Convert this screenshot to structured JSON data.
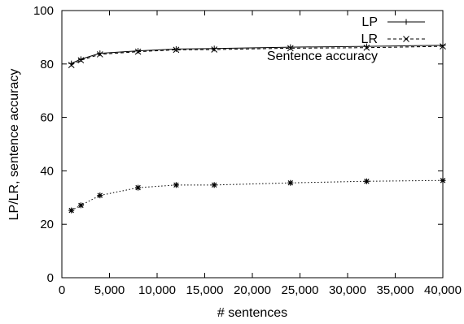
{
  "chart_data": {
    "type": "line",
    "title": "",
    "xlabel": "# sentences",
    "ylabel": "LP/LR, sentence accuracy",
    "xlim": [
      0,
      40000
    ],
    "ylim": [
      0,
      100
    ],
    "x_ticks": [
      0,
      5000,
      10000,
      15000,
      20000,
      25000,
      30000,
      35000,
      40000
    ],
    "x_tick_labels": [
      "0",
      "5,000",
      "10,000",
      "15,000",
      "20,000",
      "25,000",
      "30,000",
      "35,000",
      "40,000"
    ],
    "y_ticks": [
      0,
      20,
      40,
      60,
      80,
      100
    ],
    "y_tick_labels": [
      "0",
      "20",
      "40",
      "60",
      "80",
      "100"
    ],
    "grid": false,
    "legend_position": "top-right",
    "x": [
      1000,
      2000,
      4000,
      8000,
      12000,
      16000,
      24000,
      32000,
      40000
    ],
    "series": [
      {
        "name": "LP",
        "values": [
          80.2,
          81.8,
          84.0,
          84.9,
          85.6,
          85.8,
          86.3,
          86.6,
          87.0
        ],
        "marker": "plus",
        "line_style": "solid"
      },
      {
        "name": "LR",
        "values": [
          79.6,
          81.4,
          83.6,
          84.6,
          85.3,
          85.4,
          85.9,
          86.1,
          86.6
        ],
        "marker": "cross",
        "line_style": "dashed"
      },
      {
        "name": "Sentence accuracy",
        "values": [
          25.2,
          27.1,
          30.8,
          33.7,
          34.7,
          34.7,
          35.5,
          36.1,
          36.4
        ],
        "marker": "star",
        "line_style": "dotted"
      }
    ]
  }
}
